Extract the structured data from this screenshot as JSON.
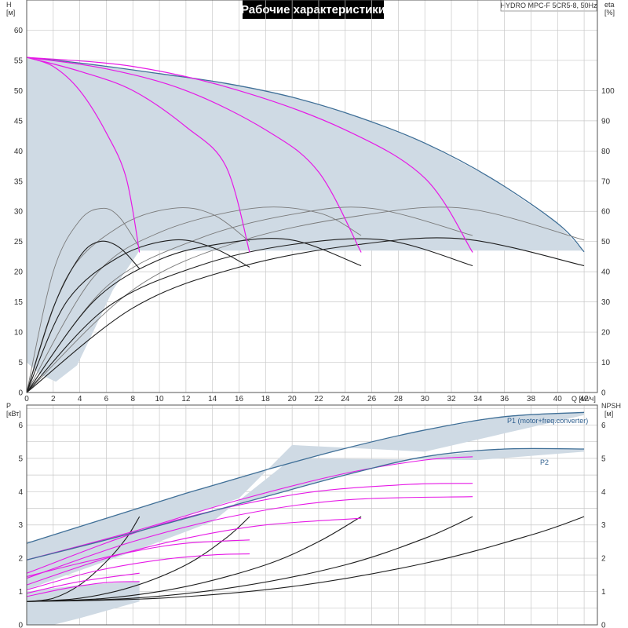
{
  "title": "Рабочие характеристики",
  "model": "HYDRO MPC-F 5CR5-8, 50Hz",
  "colors": {
    "envelope_fill": "#cfdae4",
    "envelope_edge": "#3f6f97",
    "magenta": "#e619e6",
    "black": "#1e1e1e",
    "gray": "#7a7a7a",
    "grid": "#c8c8c8"
  },
  "chart_data": [
    {
      "type": "line",
      "name": "head-efficiency",
      "x_unit": "Q [м³/ч]",
      "xlim": [
        0,
        43
      ],
      "ylim": [
        0,
        65
      ],
      "y2lim": [
        0,
        130
      ],
      "y_label": "H",
      "y_unit": "[м]",
      "y2_label": "eta",
      "y2_unit": "[%]",
      "x_ticks": [
        0,
        2,
        4,
        6,
        8,
        10,
        12,
        14,
        16,
        18,
        20,
        22,
        24,
        26,
        28,
        30,
        32,
        34,
        36,
        38,
        40,
        42
      ],
      "y_ticks": [
        0,
        5,
        10,
        15,
        20,
        25,
        30,
        35,
        40,
        45,
        50,
        55,
        60
      ],
      "y2_ticks": [
        0,
        10,
        20,
        30,
        40,
        50,
        60,
        70,
        80,
        90,
        100
      ],
      "envelope": [
        [
          0,
          55.5
        ],
        [
          5,
          54.3
        ],
        [
          10,
          52.8
        ],
        [
          15,
          51.2
        ],
        [
          20,
          48.9
        ],
        [
          25,
          45.6
        ],
        [
          30,
          41.3
        ],
        [
          35,
          35.5
        ],
        [
          40,
          28
        ],
        [
          42,
          23.3
        ],
        [
          42,
          23.5
        ],
        [
          8.5,
          23.5
        ],
        [
          6.5,
          17
        ],
        [
          5,
          10
        ],
        [
          3.8,
          4.5
        ],
        [
          2.2,
          1.8
        ],
        [
          1,
          3
        ],
        [
          0,
          5
        ]
      ],
      "head_curves": [
        {
          "points": [
            [
              0,
              55.5
            ],
            [
              2,
              54
            ],
            [
              4,
              50
            ],
            [
              6,
              43
            ],
            [
              7.5,
              35.5
            ],
            [
              8.5,
              23.2
            ]
          ]
        },
        {
          "points": [
            [
              0,
              55.5
            ],
            [
              4,
              53.2
            ],
            [
              8,
              50
            ],
            [
              12,
              44
            ],
            [
              15,
              37.5
            ],
            [
              16.8,
              23.2
            ]
          ]
        },
        {
          "points": [
            [
              0,
              55.5
            ],
            [
              6,
              53.6
            ],
            [
              12,
              50
            ],
            [
              18,
              43.5
            ],
            [
              22,
              36.5
            ],
            [
              25.2,
              23.2
            ]
          ]
        },
        {
          "points": [
            [
              0,
              55.5
            ],
            [
              8,
              54
            ],
            [
              16,
              50
            ],
            [
              24,
              43.5
            ],
            [
              30,
              35.5
            ],
            [
              33.6,
              23.2
            ]
          ]
        }
      ],
      "eff_curves_black": [
        {
          "points": [
            [
              0,
              0
            ],
            [
              2,
              28
            ],
            [
              4,
              45
            ],
            [
              5.5,
              50
            ],
            [
              7,
              48
            ],
            [
              8.5,
              41
            ]
          ]
        },
        {
          "points": [
            [
              0,
              0
            ],
            [
              3,
              30
            ],
            [
              7,
              45
            ],
            [
              11,
              50.5
            ],
            [
              14,
              48
            ],
            [
              16.8,
              41.5
            ]
          ]
        },
        {
          "points": [
            [
              0,
              0
            ],
            [
              5,
              30
            ],
            [
              10,
              44
            ],
            [
              15,
              49.5
            ],
            [
              20,
              50.5
            ],
            [
              25.2,
              42
            ]
          ]
        },
        {
          "points": [
            [
              0,
              0
            ],
            [
              6,
              28
            ],
            [
              13,
              42
            ],
            [
              20,
              49
            ],
            [
              27,
              50.5
            ],
            [
              33.6,
              42
            ]
          ]
        },
        {
          "points": [
            [
              0,
              0
            ],
            [
              8,
              28
            ],
            [
              16,
              41.5
            ],
            [
              25,
              49
            ],
            [
              33,
              50.8
            ],
            [
              42,
              42
            ]
          ]
        }
      ],
      "eff_curves_gray": [
        {
          "points": [
            [
              0,
              0
            ],
            [
              2,
              40
            ],
            [
              4,
              57
            ],
            [
              5.7,
              61
            ],
            [
              7,
              58
            ],
            [
              8.5,
              48
            ]
          ]
        },
        {
          "points": [
            [
              0,
              0
            ],
            [
              3,
              38
            ],
            [
              7,
              55
            ],
            [
              11,
              61
            ],
            [
              14,
              59
            ],
            [
              16.8,
              50
            ]
          ]
        },
        {
          "points": [
            [
              0,
              0
            ],
            [
              5,
              38
            ],
            [
              10,
              53
            ],
            [
              17,
              61
            ],
            [
              22,
              59.5
            ],
            [
              25.2,
              52
            ]
          ]
        },
        {
          "points": [
            [
              0,
              0
            ],
            [
              6,
              35
            ],
            [
              13,
              51
            ],
            [
              20,
              59
            ],
            [
              26,
              61
            ],
            [
              33.6,
              52
            ]
          ]
        },
        {
          "points": [
            [
              0,
              0
            ],
            [
              8,
              34
            ],
            [
              16,
              50
            ],
            [
              25,
              58.5
            ],
            [
              33,
              61
            ],
            [
              42,
              50.5
            ]
          ]
        }
      ]
    },
    {
      "type": "line",
      "name": "power-npsh",
      "xlim": [
        0,
        43
      ],
      "ylim": [
        0,
        6.6
      ],
      "y_label": "P",
      "y_unit": "[кВт]",
      "y2_label": "NPSH",
      "y2_unit": "[м]",
      "y_ticks": [
        0,
        1,
        2,
        3,
        4,
        5,
        6
      ],
      "y2_ticks": [
        0,
        1,
        2,
        3,
        4,
        5,
        6
      ],
      "band_p1": [
        [
          0,
          2.45
        ],
        [
          6,
          3.2
        ],
        [
          12,
          3.95
        ],
        [
          18,
          4.65
        ],
        [
          24,
          5.3
        ],
        [
          30,
          5.85
        ],
        [
          36,
          6.25
        ],
        [
          42,
          6.38
        ],
        [
          42,
          6.3
        ],
        [
          30,
          5.2
        ],
        [
          20,
          5.4
        ],
        [
          16,
          3.8
        ],
        [
          10,
          3.0
        ],
        [
          4,
          2.05
        ],
        [
          0,
          1.55
        ]
      ],
      "band_p2": [
        [
          0,
          1.95
        ],
        [
          6,
          2.55
        ],
        [
          12,
          3.2
        ],
        [
          18,
          3.85
        ],
        [
          24,
          4.5
        ],
        [
          30,
          5.05
        ],
        [
          36,
          5.28
        ],
        [
          42,
          5.28
        ],
        [
          42,
          5.2
        ],
        [
          34,
          4.95
        ],
        [
          20,
          5.0
        ],
        [
          14,
          3.1
        ],
        [
          8,
          2.2
        ],
        [
          2,
          1.35
        ],
        [
          0,
          1.05
        ]
      ],
      "band_low": [
        [
          0,
          1.0
        ],
        [
          4,
          1.2
        ],
        [
          8.5,
          1.3
        ],
        [
          8.5,
          0.7
        ],
        [
          4,
          0.2
        ],
        [
          2,
          0
        ],
        [
          0,
          0
        ]
      ],
      "p1_curve": {
        "label": "P1 (motor+freq.converter)",
        "points": [
          [
            0,
            2.45
          ],
          [
            6,
            3.2
          ],
          [
            12,
            3.95
          ],
          [
            18,
            4.65
          ],
          [
            24,
            5.3
          ],
          [
            30,
            5.85
          ],
          [
            36,
            6.25
          ],
          [
            42,
            6.38
          ]
        ]
      },
      "p2_curve": {
        "label": "P2",
        "points": [
          [
            0,
            1.95
          ],
          [
            6,
            2.55
          ],
          [
            12,
            3.2
          ],
          [
            18,
            3.85
          ],
          [
            24,
            4.5
          ],
          [
            30,
            5.05
          ],
          [
            36,
            5.28
          ],
          [
            42,
            5.28
          ]
        ]
      },
      "magenta_curves": [
        {
          "points": [
            [
              0,
              0.85
            ],
            [
              3,
              1.1
            ],
            [
              6,
              1.27
            ],
            [
              8.5,
              1.3
            ]
          ]
        },
        {
          "points": [
            [
              0,
              1.05
            ],
            [
              5,
              1.6
            ],
            [
              10,
              1.95
            ],
            [
              14,
              2.1
            ],
            [
              16.8,
              2.13
            ]
          ]
        },
        {
          "points": [
            [
              0,
              1.2
            ],
            [
              6,
              2.0
            ],
            [
              12,
              2.6
            ],
            [
              18,
              3.0
            ],
            [
              25.2,
              3.2
            ]
          ]
        },
        {
          "points": [
            [
              0,
              1.4
            ],
            [
              8,
              2.5
            ],
            [
              16,
              3.3
            ],
            [
              24,
              3.75
            ],
            [
              33.6,
              3.85
            ]
          ]
        },
        {
          "points": [
            [
              0,
              1.55
            ],
            [
              10,
              3.0
            ],
            [
              20,
              3.9
            ],
            [
              28,
              4.2
            ],
            [
              33.6,
              4.25
            ]
          ]
        },
        {
          "points": [
            [
              0,
              1.95
            ],
            [
              8,
              2.8
            ],
            [
              16,
              3.75
            ],
            [
              24,
              4.55
            ],
            [
              30,
              4.95
            ],
            [
              33.6,
              5.05
            ]
          ]
        },
        {
          "points": [
            [
              0,
              1.45
            ],
            [
              4,
              1.85
            ],
            [
              8,
              2.2
            ],
            [
              12,
              2.45
            ],
            [
              16.8,
              2.55
            ]
          ]
        },
        {
          "points": [
            [
              0,
              0.95
            ],
            [
              4,
              1.3
            ],
            [
              8.5,
              1.55
            ]
          ]
        }
      ],
      "npsh_curves": [
        {
          "points": [
            [
              0,
              0.7
            ],
            [
              2,
              0.8
            ],
            [
              4,
              1.2
            ],
            [
              6,
              1.9
            ],
            [
              7.5,
              2.6
            ],
            [
              8.5,
              3.25
            ]
          ]
        },
        {
          "points": [
            [
              0,
              0.7
            ],
            [
              4,
              0.8
            ],
            [
              8,
              1.15
            ],
            [
              12,
              1.8
            ],
            [
              15,
              2.6
            ],
            [
              16.8,
              3.25
            ]
          ]
        },
        {
          "points": [
            [
              0,
              0.7
            ],
            [
              6,
              0.8
            ],
            [
              12,
              1.15
            ],
            [
              18,
              1.8
            ],
            [
              22,
              2.5
            ],
            [
              25.2,
              3.25
            ]
          ]
        },
        {
          "points": [
            [
              0,
              0.7
            ],
            [
              8,
              0.8
            ],
            [
              16,
              1.15
            ],
            [
              24,
              1.8
            ],
            [
              30,
              2.6
            ],
            [
              33.6,
              3.25
            ]
          ]
        },
        {
          "points": [
            [
              0,
              0.7
            ],
            [
              10,
              0.8
            ],
            [
              20,
              1.15
            ],
            [
              30,
              1.85
            ],
            [
              38,
              2.7
            ],
            [
              42,
              3.25
            ]
          ]
        }
      ]
    }
  ]
}
